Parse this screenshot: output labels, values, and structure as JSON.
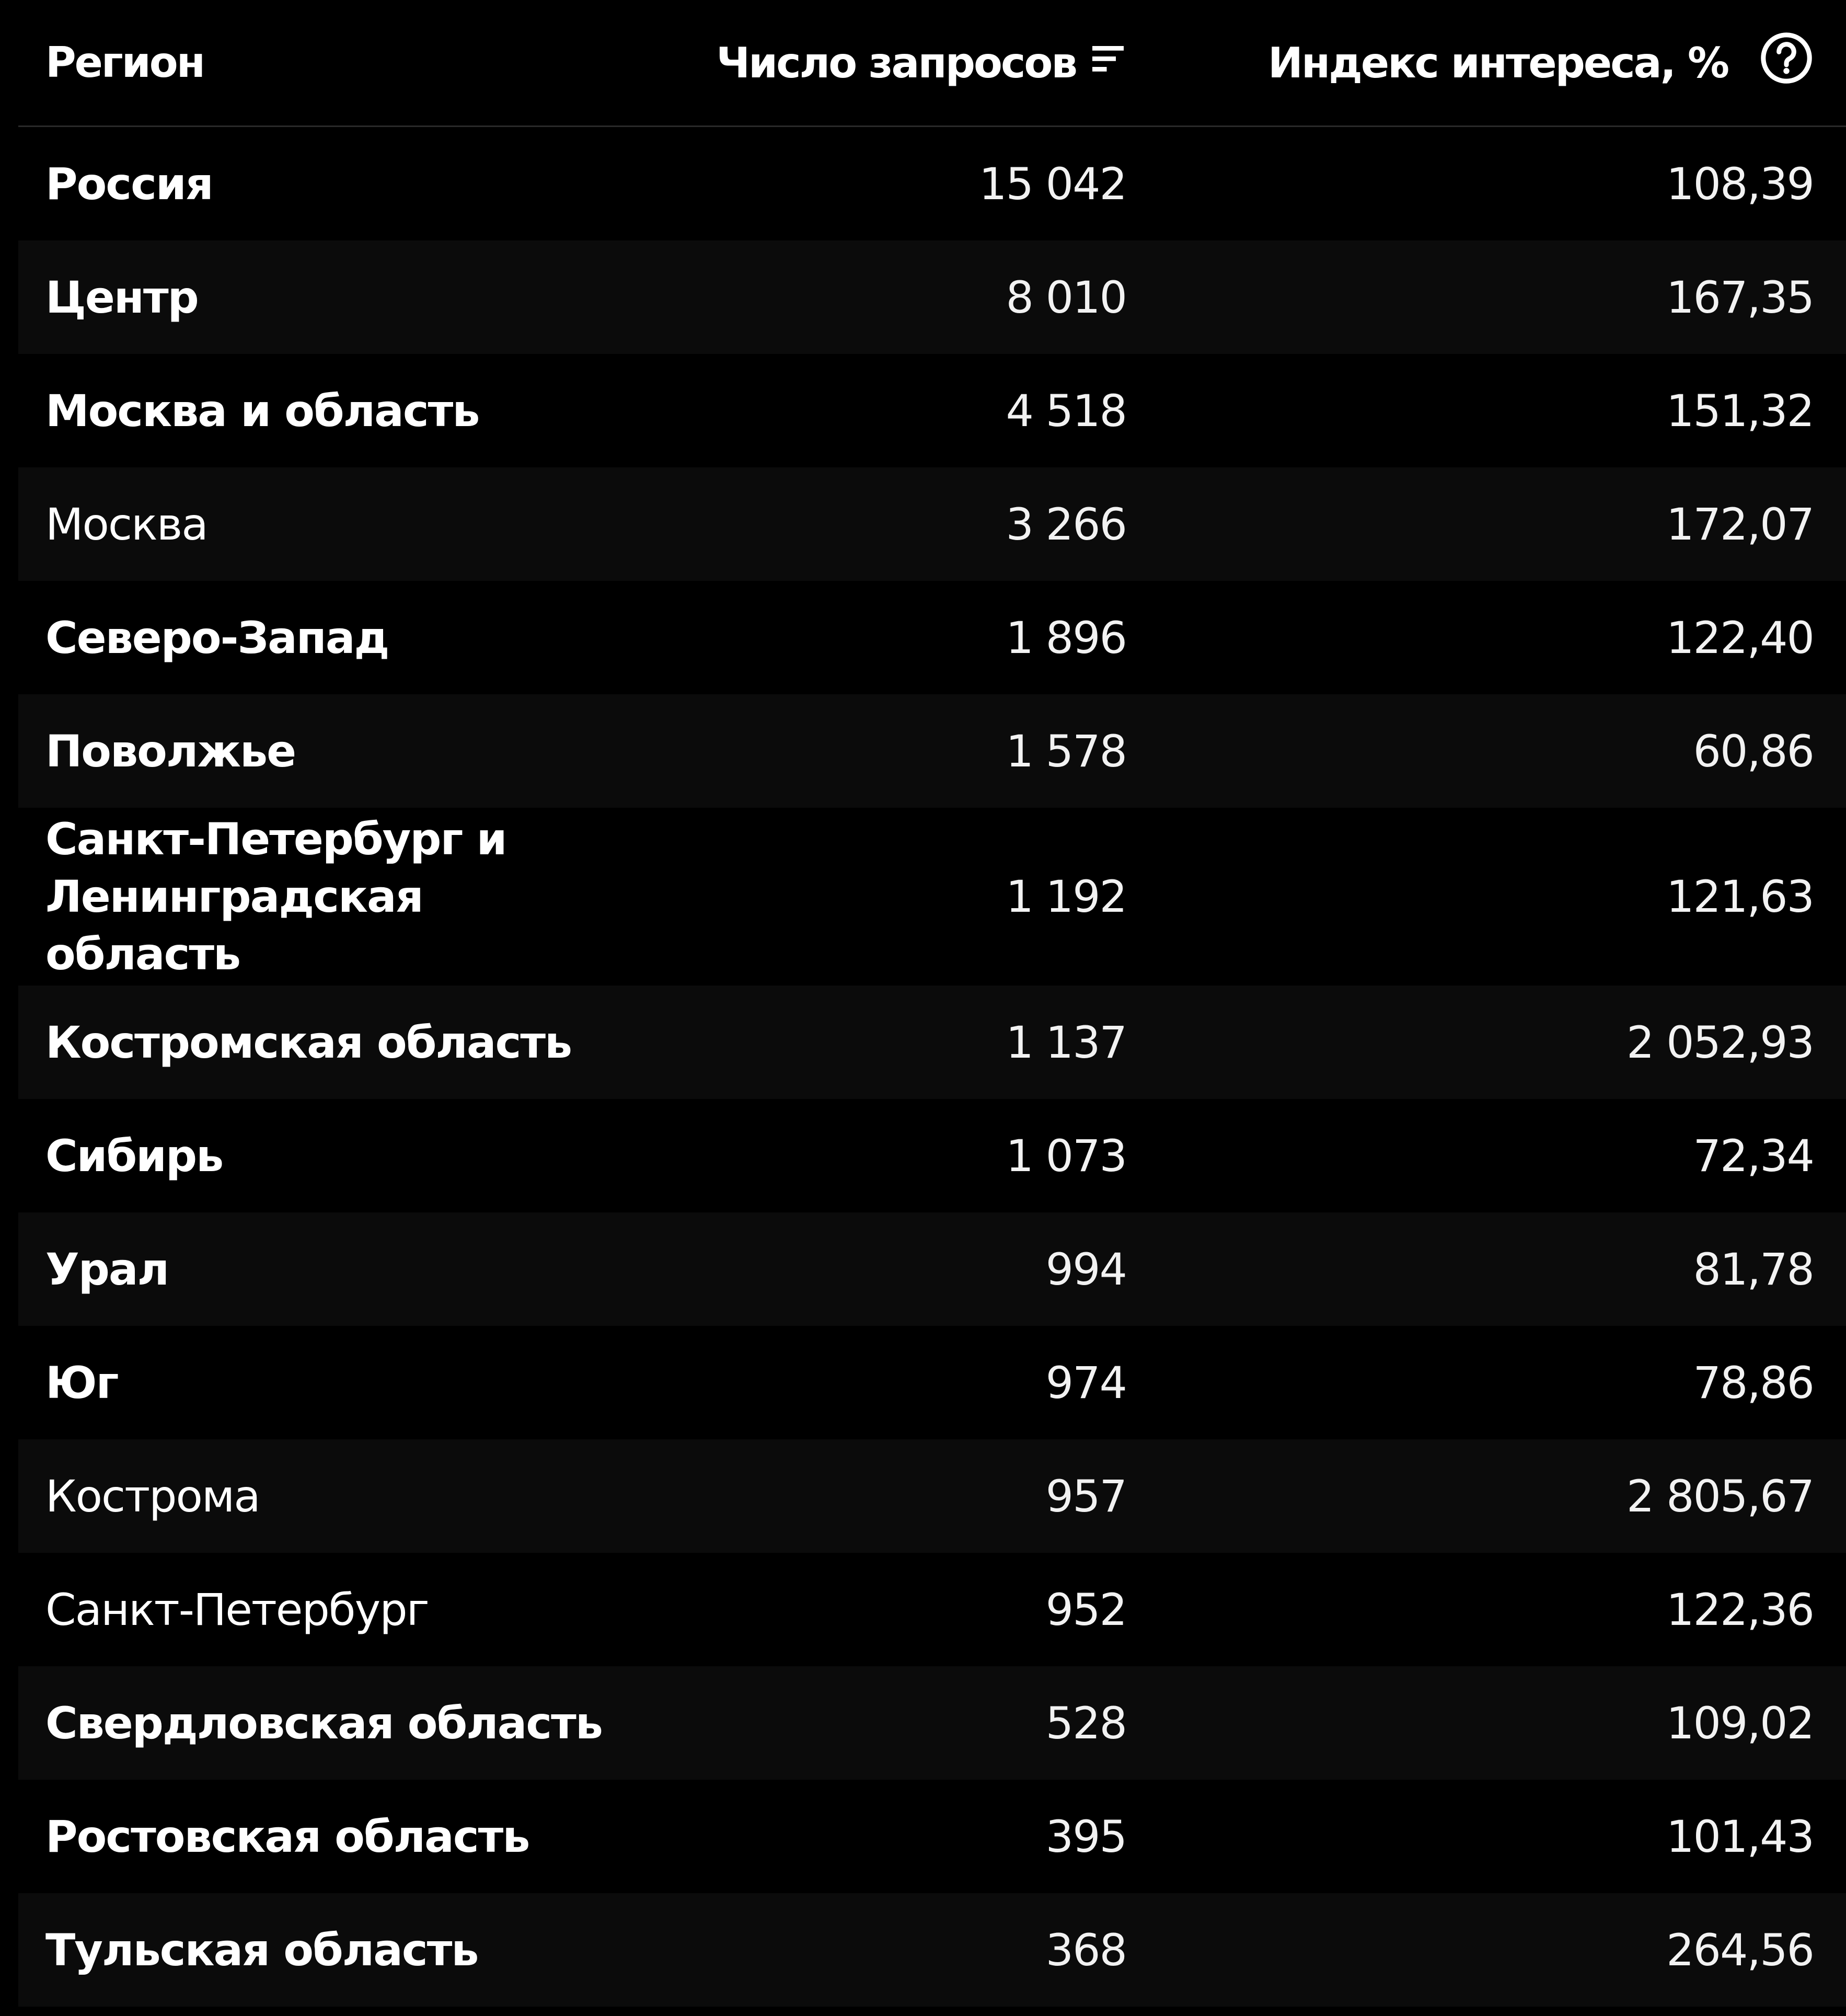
{
  "header": {
    "region": "Регион",
    "count": "Число запросов",
    "index": "Индекс интереса, %",
    "sort_icon": "sort-descending-icon",
    "help_icon": "question-circle-icon"
  },
  "rows": [
    {
      "region": "Россия",
      "count": "15 042",
      "index": "108,39",
      "bold": true
    },
    {
      "region": "Центр",
      "count": "8 010",
      "index": "167,35",
      "bold": true
    },
    {
      "region": "Москва и область",
      "count": "4 518",
      "index": "151,32",
      "bold": true
    },
    {
      "region": "Москва",
      "count": "3 266",
      "index": "172,07",
      "bold": false
    },
    {
      "region": "Северо-Запад",
      "count": "1 896",
      "index": "122,40",
      "bold": true
    },
    {
      "region": "Поволжье",
      "count": "1 578",
      "index": "60,86",
      "bold": true
    },
    {
      "region": "Санкт-Петербург и Ленинградская область",
      "count": "1 192",
      "index": "121,63",
      "bold": true
    },
    {
      "region": "Костромская область",
      "count": "1 137",
      "index": "2 052,93",
      "bold": true
    },
    {
      "region": "Сибирь",
      "count": "1 073",
      "index": "72,34",
      "bold": true
    },
    {
      "region": "Урал",
      "count": "994",
      "index": "81,78",
      "bold": true
    },
    {
      "region": "Юг",
      "count": "974",
      "index": "78,86",
      "bold": true
    },
    {
      "region": "Кострома",
      "count": "957",
      "index": "2 805,67",
      "bold": false
    },
    {
      "region": "Санкт-Петербург",
      "count": "952",
      "index": "122,36",
      "bold": false
    },
    {
      "region": "Свердловская область",
      "count": "528",
      "index": "109,02",
      "bold": true
    },
    {
      "region": "Ростовская область",
      "count": "395",
      "index": "101,43",
      "bold": true
    },
    {
      "region": "Тульская область",
      "count": "368",
      "index": "264,56",
      "bold": true
    }
  ]
}
